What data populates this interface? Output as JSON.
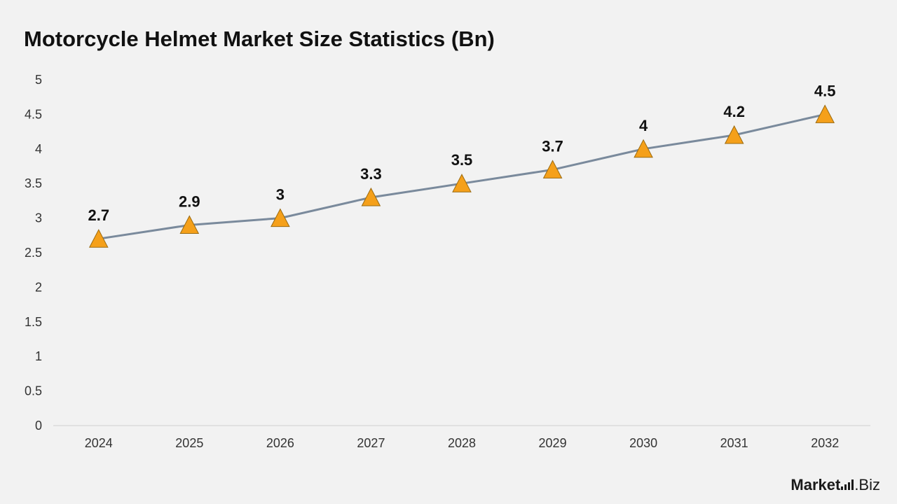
{
  "title": "Motorcycle Helmet Market Size Statistics (Bn)",
  "logo": {
    "brand": "Market",
    "suffix": ".Biz"
  },
  "colors": {
    "background": "#f2f2f2",
    "line": "#7a8a9c",
    "marker": "#f5a01a",
    "marker_stroke": "#9a6a10",
    "axis": "#d0d0d0"
  },
  "chart_data": {
    "type": "line",
    "title": "Motorcycle Helmet Market Size Statistics (Bn)",
    "categories": [
      "2024",
      "2025",
      "2026",
      "2027",
      "2028",
      "2029",
      "2030",
      "2031",
      "2032"
    ],
    "series": [
      {
        "values": [
          2.7,
          2.9,
          3,
          3.3,
          3.5,
          3.7,
          4,
          4.2,
          4.5
        ]
      }
    ],
    "data_labels": [
      "2.7",
      "2.9",
      "3",
      "3.3",
      "3.5",
      "3.7",
      "4",
      "4.2",
      "4.5"
    ],
    "y_ticks": [
      "0",
      "0.5",
      "1",
      "1.5",
      "2",
      "2.5",
      "3",
      "3.5",
      "4",
      "4.5",
      "5"
    ],
    "ylim": [
      0,
      5
    ],
    "marker": "triangle",
    "grid": false,
    "legend": "none",
    "xlabel": "",
    "ylabel": ""
  }
}
